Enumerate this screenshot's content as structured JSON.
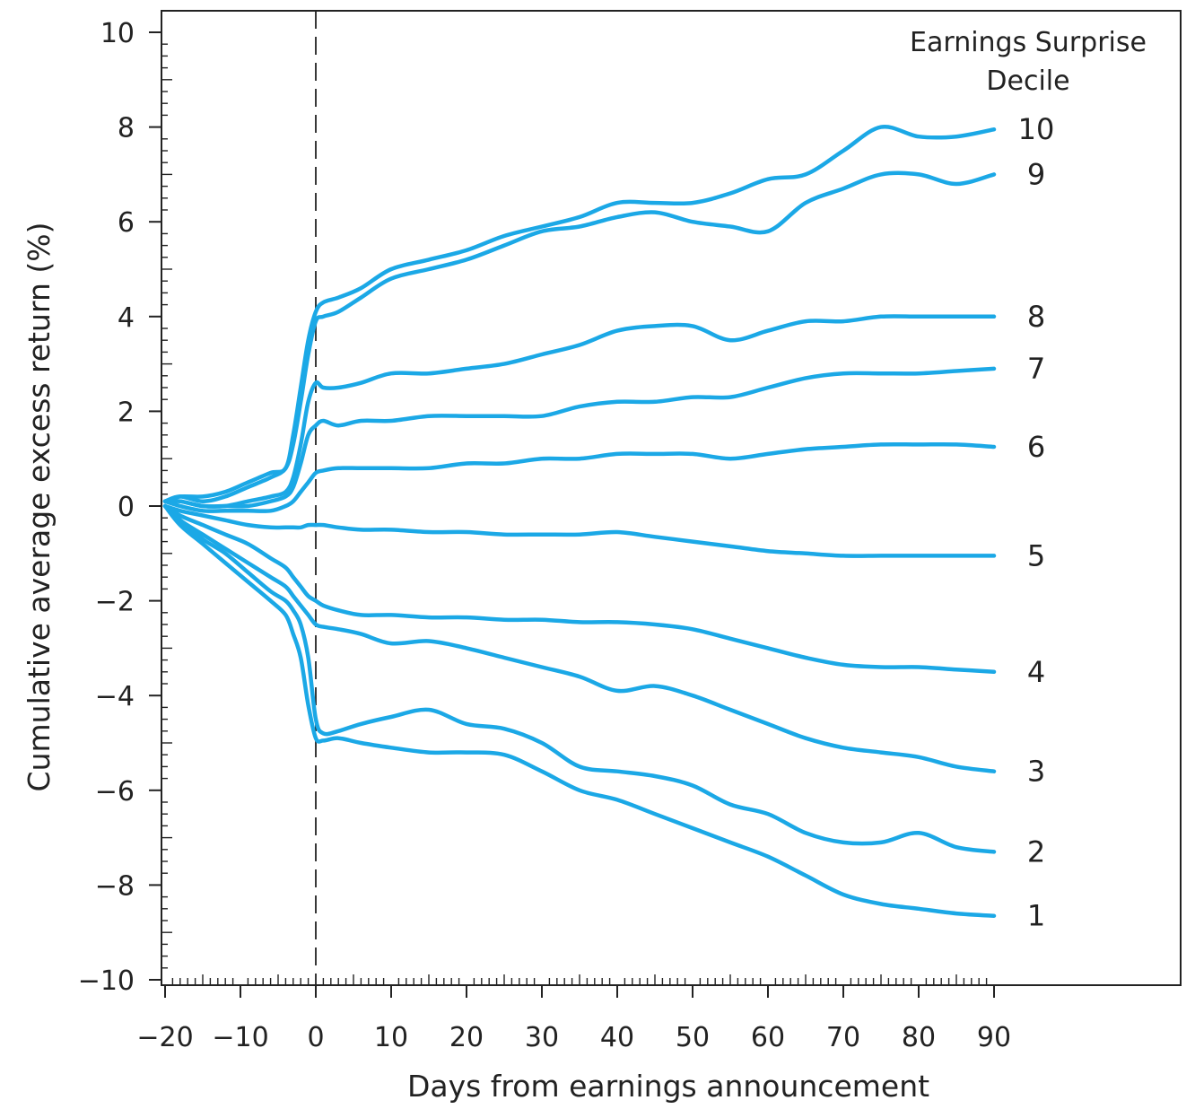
{
  "chart_data": {
    "type": "line",
    "title": "",
    "xlabel": "Days from earnings announcement",
    "ylabel": "Cumulative average excess return (%)",
    "xlim": [
      -20,
      90
    ],
    "ylim": [
      -10,
      10
    ],
    "x_ticks": [
      -20,
      -10,
      0,
      10,
      20,
      30,
      40,
      50,
      60,
      70,
      80,
      90
    ],
    "x_tick_labels": [
      "−20",
      "−10",
      "0",
      "10",
      "20",
      "30",
      "40",
      "50",
      "60",
      "70",
      "80",
      "90"
    ],
    "y_ticks": [
      10,
      8,
      6,
      4,
      2,
      0,
      -2,
      -4,
      -6,
      -8,
      -10
    ],
    "y_tick_labels": [
      "10",
      "8",
      "6",
      "4",
      "2",
      "0",
      "−2",
      "−4",
      "−6",
      "−8",
      "−10"
    ],
    "reference_line": {
      "x": 0,
      "style": "dashed"
    },
    "legend_title": [
      "Earnings Surprise",
      "Decile"
    ],
    "line_color": "#1BA8E6",
    "x": [
      -20,
      -18,
      -15,
      -12,
      -9,
      -6,
      -4,
      -3,
      -2,
      -1,
      0,
      1,
      3,
      6,
      10,
      15,
      20,
      25,
      30,
      35,
      40,
      45,
      50,
      55,
      60,
      65,
      70,
      75,
      80,
      85,
      90
    ],
    "series": [
      {
        "name": "10",
        "values": [
          0.1,
          0.2,
          0.2,
          0.3,
          0.5,
          0.7,
          0.8,
          1.5,
          2.5,
          3.5,
          4.1,
          4.3,
          4.4,
          4.6,
          5.0,
          5.2,
          5.4,
          5.7,
          5.9,
          6.1,
          6.4,
          6.4,
          6.4,
          6.6,
          6.9,
          7.0,
          7.5,
          8.0,
          7.8,
          7.8,
          7.95
        ]
      },
      {
        "name": "9",
        "values": [
          0.1,
          0.2,
          0.1,
          0.2,
          0.4,
          0.6,
          0.8,
          1.3,
          2.2,
          3.2,
          3.9,
          4.0,
          4.1,
          4.4,
          4.8,
          5.0,
          5.2,
          5.5,
          5.8,
          5.9,
          6.1,
          6.2,
          6.0,
          5.9,
          5.8,
          6.4,
          6.7,
          7.0,
          7.0,
          6.8,
          7.0
        ]
      },
      {
        "name": "8",
        "values": [
          0.1,
          0.1,
          0.0,
          0.0,
          0.1,
          0.2,
          0.3,
          0.6,
          1.3,
          2.2,
          2.6,
          2.5,
          2.5,
          2.6,
          2.8,
          2.8,
          2.9,
          3.0,
          3.2,
          3.4,
          3.7,
          3.8,
          3.8,
          3.5,
          3.7,
          3.9,
          3.9,
          4.0,
          4.0,
          4.0,
          4.0
        ]
      },
      {
        "name": "7",
        "values": [
          0.1,
          0.1,
          0.0,
          0.0,
          0.0,
          0.1,
          0.2,
          0.4,
          0.9,
          1.5,
          1.7,
          1.8,
          1.7,
          1.8,
          1.8,
          1.9,
          1.9,
          1.9,
          1.9,
          2.1,
          2.2,
          2.2,
          2.3,
          2.3,
          2.5,
          2.7,
          2.8,
          2.8,
          2.8,
          2.85,
          2.9
        ]
      },
      {
        "name": "6",
        "values": [
          0.1,
          0.0,
          -0.1,
          -0.1,
          -0.1,
          -0.1,
          0.0,
          0.1,
          0.3,
          0.5,
          0.7,
          0.75,
          0.8,
          0.8,
          0.8,
          0.8,
          0.9,
          0.9,
          1.0,
          1.0,
          1.1,
          1.1,
          1.1,
          1.0,
          1.1,
          1.2,
          1.25,
          1.3,
          1.3,
          1.3,
          1.25
        ]
      },
      {
        "name": "5",
        "values": [
          0.0,
          -0.1,
          -0.2,
          -0.3,
          -0.4,
          -0.45,
          -0.45,
          -0.45,
          -0.45,
          -0.4,
          -0.4,
          -0.4,
          -0.45,
          -0.5,
          -0.5,
          -0.55,
          -0.55,
          -0.6,
          -0.6,
          -0.6,
          -0.55,
          -0.65,
          -0.75,
          -0.85,
          -0.95,
          -1.0,
          -1.05,
          -1.05,
          -1.05,
          -1.05,
          -1.05
        ]
      },
      {
        "name": "4",
        "values": [
          0.0,
          -0.2,
          -0.4,
          -0.6,
          -0.8,
          -1.1,
          -1.3,
          -1.5,
          -1.7,
          -1.9,
          -2.0,
          -2.1,
          -2.2,
          -2.3,
          -2.3,
          -2.35,
          -2.35,
          -2.4,
          -2.4,
          -2.45,
          -2.45,
          -2.5,
          -2.6,
          -2.8,
          -3.0,
          -3.2,
          -3.35,
          -3.4,
          -3.4,
          -3.45,
          -3.5
        ]
      },
      {
        "name": "3",
        "values": [
          0.0,
          -0.3,
          -0.6,
          -0.9,
          -1.2,
          -1.5,
          -1.7,
          -1.9,
          -2.1,
          -2.3,
          -2.5,
          -2.55,
          -2.6,
          -2.7,
          -2.9,
          -2.85,
          -3.0,
          -3.2,
          -3.4,
          -3.6,
          -3.9,
          -3.8,
          -4.0,
          -4.3,
          -4.6,
          -4.9,
          -5.1,
          -5.2,
          -5.3,
          -5.5,
          -5.6
        ]
      },
      {
        "name": "2",
        "values": [
          0.0,
          -0.3,
          -0.7,
          -1.0,
          -1.4,
          -1.8,
          -2.0,
          -2.2,
          -2.5,
          -3.2,
          -4.5,
          -4.8,
          -4.75,
          -4.6,
          -4.45,
          -4.3,
          -4.6,
          -4.7,
          -5.0,
          -5.5,
          -5.6,
          -5.7,
          -5.9,
          -6.3,
          -6.5,
          -6.9,
          -7.1,
          -7.1,
          -6.9,
          -7.2,
          -7.3
        ]
      },
      {
        "name": "1",
        "values": [
          0.0,
          -0.4,
          -0.8,
          -1.2,
          -1.6,
          -2.0,
          -2.3,
          -2.7,
          -3.2,
          -4.2,
          -4.9,
          -4.95,
          -4.9,
          -5.0,
          -5.1,
          -5.2,
          -5.2,
          -5.25,
          -5.6,
          -6.0,
          -6.2,
          -6.5,
          -6.8,
          -7.1,
          -7.4,
          -7.8,
          -8.2,
          -8.4,
          -8.5,
          -8.6,
          -8.65
        ]
      }
    ]
  }
}
